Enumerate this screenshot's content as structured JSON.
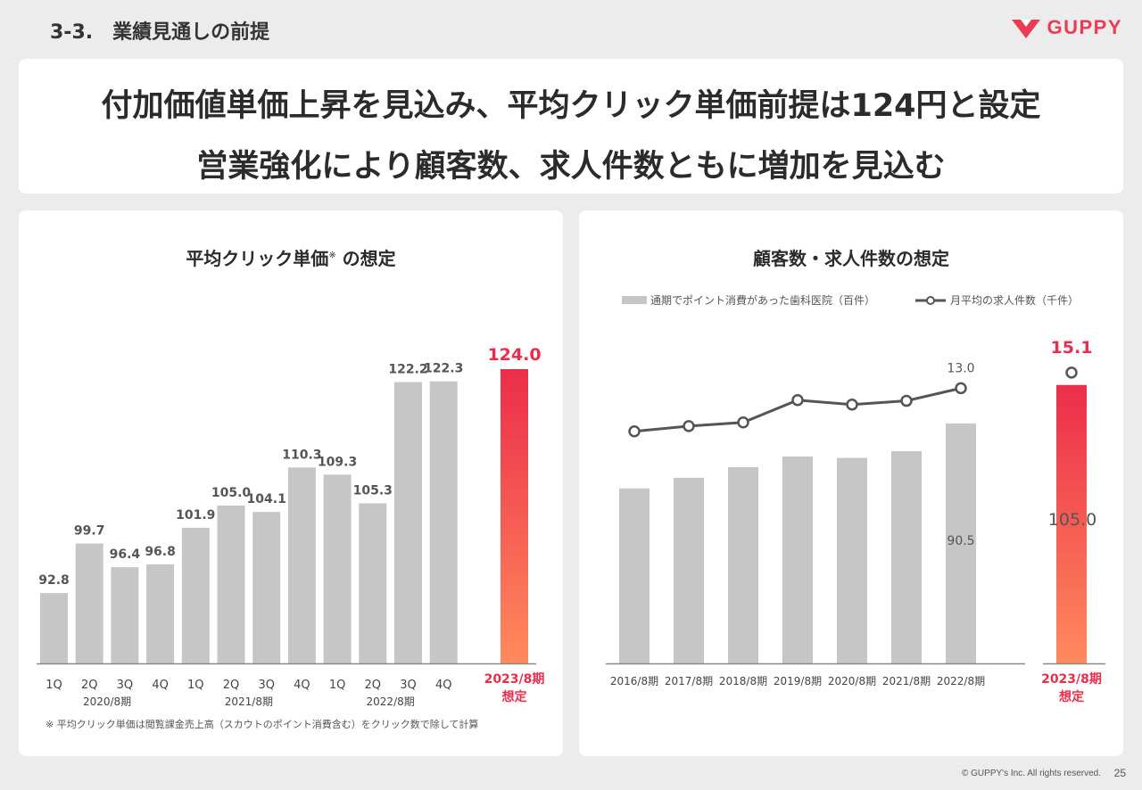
{
  "header": {
    "section_title": "3-3.　業績見通しの前提",
    "logo_text": "GUPPY"
  },
  "headline": {
    "line1": "付加価値単価上昇を見込み、平均クリック単価前提は124円と設定",
    "line2": "営業強化により顧客数、求人件数ともに増加を見込む"
  },
  "left_panel": {
    "title": "平均クリック単価",
    "title_mark": "※",
    "title_suffix": "の想定",
    "footnote": "※ 平均クリック単価は閲覧課金売上高（スカウトのポイント消費含む）をクリック数で除して計算"
  },
  "right_panel": {
    "title": "顧客数・求人件数の想定",
    "legend_bar": "通期でポイント消費があった歯科医院（百件）",
    "legend_line": "月平均の求人件数（千件）"
  },
  "footer": {
    "copyright": "© GUPPY's Inc. All rights reserved.",
    "page": "25"
  },
  "colors": {
    "bar_gray": "#c6c6c6",
    "accent_red": "#ec2d4a",
    "gradient_bottom": "#ff8a5c",
    "line_gray": "#555555"
  },
  "chart_data": [
    {
      "type": "bar",
      "categories": [
        "1Q",
        "2Q",
        "3Q",
        "4Q",
        "1Q",
        "2Q",
        "3Q",
        "4Q",
        "1Q",
        "2Q",
        "3Q",
        "4Q",
        "2023/8期 想定"
      ],
      "groups": [
        {
          "label": "2020/8期",
          "from": 0,
          "to": 3
        },
        {
          "label": "2021/8期",
          "from": 4,
          "to": 7
        },
        {
          "label": "2022/8期",
          "from": 8,
          "to": 11
        }
      ],
      "values": [
        92.8,
        99.7,
        96.4,
        96.8,
        101.9,
        105.0,
        104.1,
        110.3,
        109.3,
        105.3,
        122.2,
        122.3,
        124.0
      ],
      "labels": [
        "92.8",
        "99.7",
        "96.4",
        "96.8",
        "101.9",
        "105.0",
        "104.1",
        "110.3",
        "109.3",
        "105.3",
        "122.2",
        "122.3",
        "124.0"
      ],
      "forecast_category_lines": [
        "2023/8期",
        "想定"
      ],
      "highlight_index": 12,
      "ylim": [
        83,
        124
      ]
    },
    {
      "type": "bar+line",
      "categories": [
        "2016/8期",
        "2017/8期",
        "2018/8期",
        "2019/8期",
        "2020/8期",
        "2021/8期",
        "2022/8期",
        "2023/8期 想定"
      ],
      "forecast_category_lines": [
        "2023/8期",
        "想定"
      ],
      "series": [
        {
          "name": "通期でポイント消費があった歯科医院（百件）",
          "kind": "bar",
          "values": [
            66,
            70,
            74,
            78,
            77.5,
            80,
            90.5,
            105.0
          ],
          "labels": {
            "6": "90.5",
            "7": "105.0"
          }
        },
        {
          "name": "月平均の求人件数（千件）",
          "kind": "line",
          "values": [
            7.2,
            7.9,
            8.4,
            11.4,
            10.8,
            11.3,
            13.0,
            15.1
          ],
          "labels": {
            "6": "13.0",
            "7": "15.1"
          }
        }
      ],
      "highlight_index": 7,
      "bar_ylim": [
        0,
        115
      ],
      "line_ylim": [
        -24,
        17
      ]
    }
  ]
}
